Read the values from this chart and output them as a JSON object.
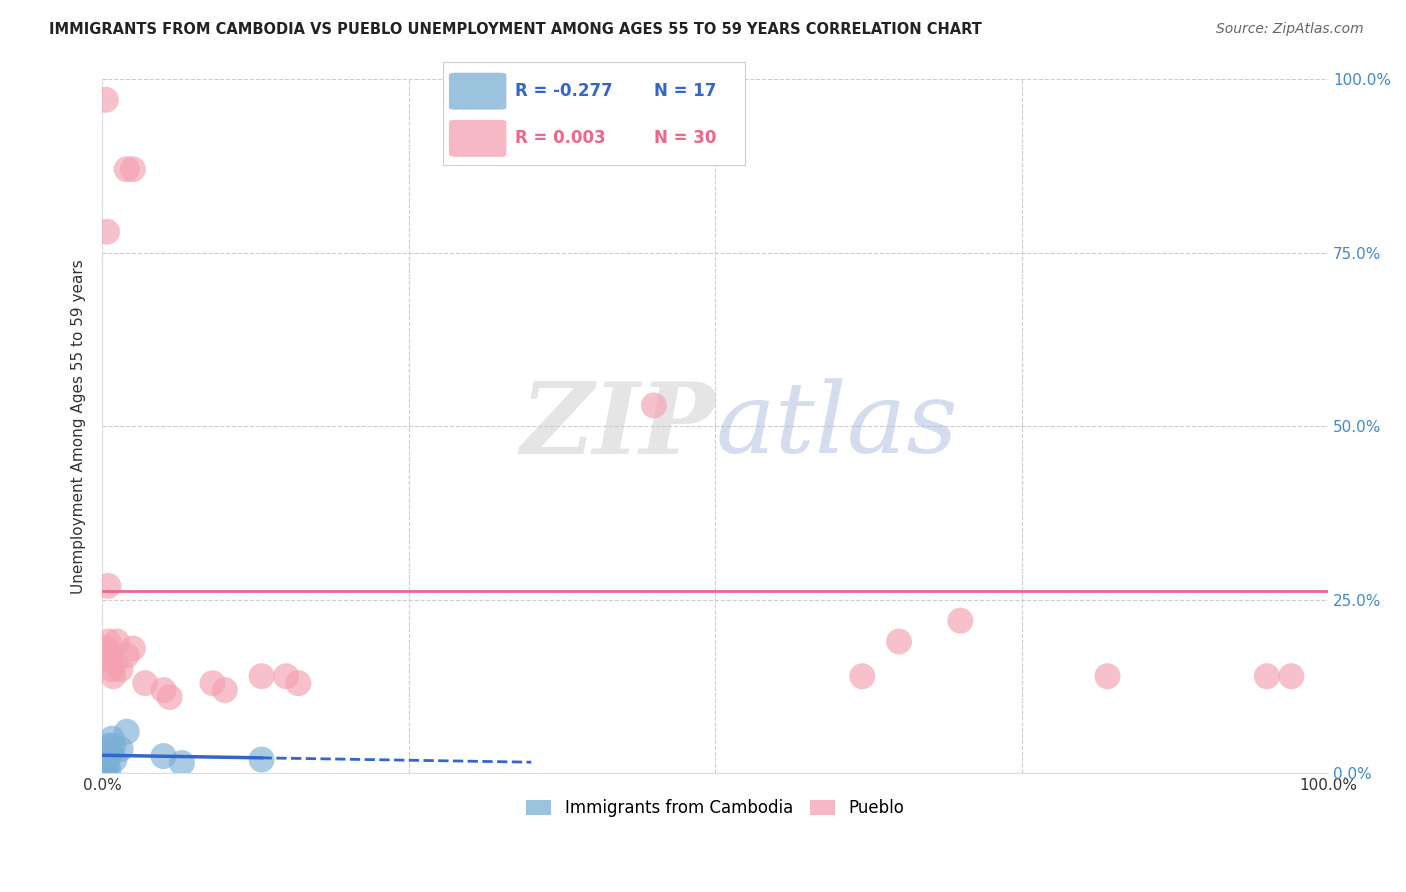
{
  "title": "IMMIGRANTS FROM CAMBODIA VS PUEBLO UNEMPLOYMENT AMONG AGES 55 TO 59 YEARS CORRELATION CHART",
  "source": "Source: ZipAtlas.com",
  "ylabel": "Unemployment Among Ages 55 to 59 years",
  "xlim": [
    0,
    1.0
  ],
  "ylim": [
    0,
    1.0
  ],
  "legend_blue_R": "-0.277",
  "legend_blue_N": "17",
  "legend_pink_R": "0.003",
  "legend_pink_N": "30",
  "blue_color": "#7BAFD4",
  "pink_color": "#F4A0B0",
  "trend_blue_color": "#3366CC",
  "trend_pink_color": "#EE6688",
  "watermark": "ZIPatlas",
  "blue_scatter": [
    [
      0.002,
      0.005
    ],
    [
      0.003,
      0.01
    ],
    [
      0.003,
      0.005
    ],
    [
      0.004,
      0.02
    ],
    [
      0.004,
      0.03
    ],
    [
      0.005,
      0.04
    ],
    [
      0.005,
      0.005
    ],
    [
      0.006,
      0.025
    ],
    [
      0.007,
      0.03
    ],
    [
      0.008,
      0.05
    ],
    [
      0.009,
      0.04
    ],
    [
      0.01,
      0.02
    ],
    [
      0.015,
      0.035
    ],
    [
      0.02,
      0.06
    ],
    [
      0.05,
      0.025
    ],
    [
      0.065,
      0.015
    ],
    [
      0.13,
      0.02
    ]
  ],
  "pink_scatter": [
    [
      0.003,
      0.97
    ],
    [
      0.02,
      0.87
    ],
    [
      0.025,
      0.87
    ],
    [
      0.004,
      0.78
    ],
    [
      0.005,
      0.27
    ],
    [
      0.003,
      0.18
    ],
    [
      0.005,
      0.19
    ],
    [
      0.006,
      0.17
    ],
    [
      0.008,
      0.15
    ],
    [
      0.009,
      0.14
    ],
    [
      0.01,
      0.16
    ],
    [
      0.012,
      0.19
    ],
    [
      0.015,
      0.15
    ],
    [
      0.02,
      0.17
    ],
    [
      0.025,
      0.18
    ],
    [
      0.035,
      0.13
    ],
    [
      0.05,
      0.12
    ],
    [
      0.055,
      0.11
    ],
    [
      0.09,
      0.13
    ],
    [
      0.1,
      0.12
    ],
    [
      0.13,
      0.14
    ],
    [
      0.15,
      0.14
    ],
    [
      0.16,
      0.13
    ],
    [
      0.45,
      0.53
    ],
    [
      0.62,
      0.14
    ],
    [
      0.65,
      0.19
    ],
    [
      0.7,
      0.22
    ],
    [
      0.82,
      0.14
    ],
    [
      0.95,
      0.14
    ],
    [
      0.97,
      0.14
    ]
  ],
  "pink_trend_y": 0.262,
  "blue_trend_x_start": 0.0,
  "blue_trend_x_solid_end": 0.13,
  "blue_trend_x_end": 0.35
}
